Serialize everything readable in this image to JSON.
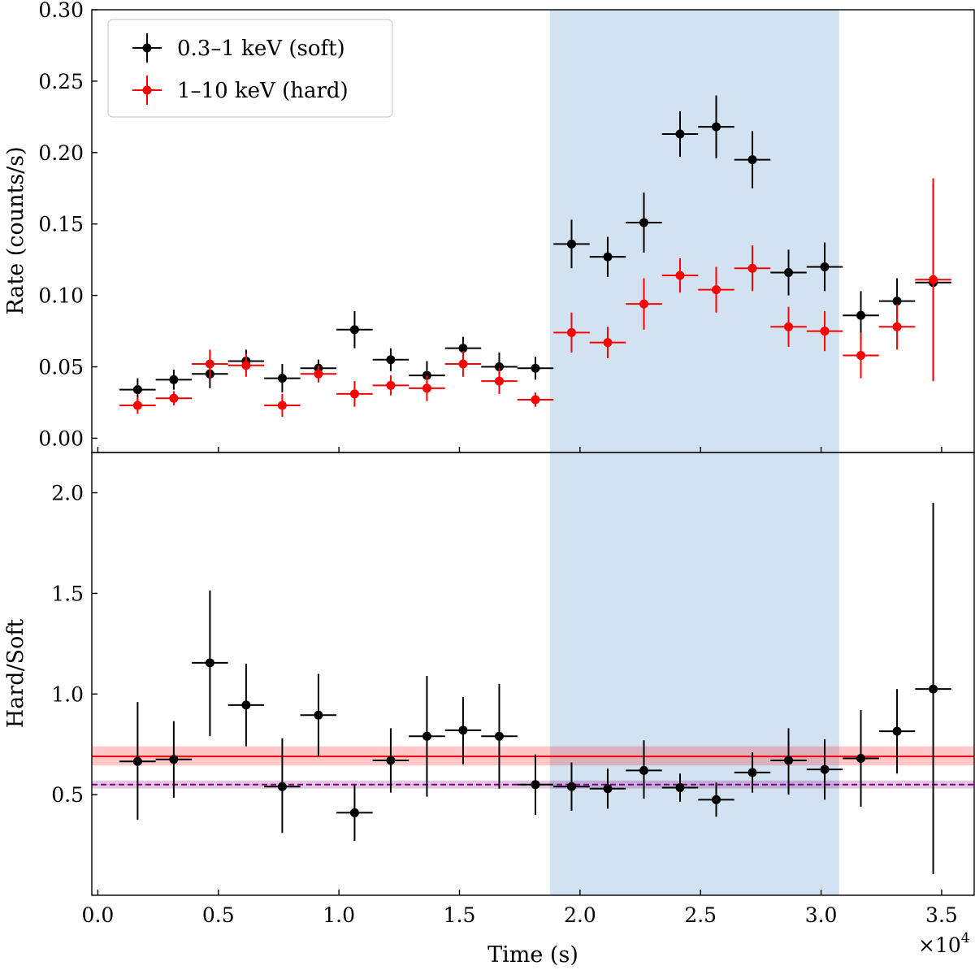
{
  "chart_data": [
    {
      "panel": "top",
      "type": "scatter",
      "ylabel": "Rate (counts/s)",
      "ylim": [
        -0.01,
        0.3
      ],
      "xlim": [
        -250,
        36350
      ],
      "y_ticks": [
        0.0,
        0.05,
        0.1,
        0.15,
        0.2,
        0.25,
        0.3
      ],
      "y_tick_labels": [
        "0.00",
        "0.05",
        "0.10",
        "0.15",
        "0.20",
        "0.25",
        "0.30"
      ],
      "legend_position": "top-left",
      "shaded_region": {
        "x": [
          18750,
          30750
        ],
        "color": "#a8c8e4"
      },
      "series": [
        {
          "name": "0.3–1 keV (soft)",
          "color": "#000000",
          "x": [
            1650,
            3150,
            4650,
            6150,
            7650,
            9150,
            10650,
            12150,
            13650,
            15150,
            16650,
            18150,
            19650,
            21150,
            22650,
            24150,
            25650,
            27150,
            28650,
            30150,
            31650,
            33150,
            34650
          ],
          "xerr": [
            750,
            750,
            750,
            750,
            750,
            750,
            750,
            750,
            750,
            750,
            750,
            750,
            750,
            750,
            750,
            750,
            750,
            750,
            750,
            750,
            750,
            750,
            750
          ],
          "y": [
            0.034,
            0.041,
            0.045,
            0.054,
            0.042,
            0.049,
            0.076,
            0.055,
            0.044,
            0.063,
            0.05,
            0.049,
            0.136,
            0.127,
            0.151,
            0.213,
            0.218,
            0.195,
            0.116,
            0.12,
            0.086,
            0.096,
            0.109
          ],
          "yerr": [
            0.008,
            0.007,
            0.01,
            0.008,
            0.01,
            0.006,
            0.013,
            0.008,
            0.01,
            0.008,
            0.01,
            0.008,
            0.017,
            0.014,
            0.021,
            0.016,
            0.022,
            0.02,
            0.016,
            0.017,
            0.017,
            0.016,
            0.069
          ]
        },
        {
          "name": "1–10 keV (hard)",
          "color": "#ff0000",
          "x": [
            1650,
            3150,
            4650,
            6150,
            7650,
            9150,
            10650,
            12150,
            13650,
            15150,
            16650,
            18150,
            19650,
            21150,
            22650,
            24150,
            25650,
            27150,
            28650,
            30150,
            31650,
            33150,
            34650
          ],
          "xerr": [
            750,
            750,
            750,
            750,
            750,
            750,
            750,
            750,
            750,
            750,
            750,
            750,
            750,
            750,
            750,
            750,
            750,
            750,
            750,
            750,
            750,
            750,
            750
          ],
          "y": [
            0.023,
            0.028,
            0.052,
            0.051,
            0.023,
            0.045,
            0.031,
            0.037,
            0.035,
            0.052,
            0.04,
            0.027,
            0.074,
            0.067,
            0.094,
            0.114,
            0.104,
            0.119,
            0.078,
            0.075,
            0.058,
            0.078,
            0.111
          ],
          "yerr": [
            0.006,
            0.005,
            0.01,
            0.008,
            0.008,
            0.006,
            0.009,
            0.007,
            0.009,
            0.009,
            0.009,
            0.005,
            0.014,
            0.011,
            0.018,
            0.012,
            0.016,
            0.016,
            0.014,
            0.014,
            0.016,
            0.016,
            0.071
          ]
        }
      ]
    },
    {
      "panel": "bottom",
      "type": "scatter",
      "xlabel": "Time (s)",
      "ylabel": "Hard/Soft",
      "ylim": [
        0.0,
        2.2
      ],
      "xlim": [
        -250,
        36350
      ],
      "x_ticks": [
        0,
        5000,
        10000,
        15000,
        20000,
        25000,
        30000,
        35000
      ],
      "x_tick_labels": [
        "0.0",
        "0.5",
        "1.0",
        "1.5",
        "2.0",
        "2.5",
        "3.0",
        "3.5"
      ],
      "x_offset_label": "×10",
      "x_offset_exponent": "4",
      "y_ticks": [
        0.5,
        1.0,
        1.5,
        2.0
      ],
      "y_tick_labels": [
        "0.5",
        "1.0",
        "1.5",
        "2.0"
      ],
      "shaded_region": {
        "x": [
          18750,
          30750
        ],
        "color": "#a8c8e4"
      },
      "reference_lines": [
        {
          "y": 0.69,
          "band": [
            0.645,
            0.74
          ],
          "color": "#ff0000",
          "style": "solid"
        },
        {
          "y": 0.55,
          "band": [
            0.53,
            0.57
          ],
          "color": "#800080",
          "style": "dashed"
        }
      ],
      "series": [
        {
          "color": "#000000",
          "x": [
            1650,
            3150,
            4650,
            6150,
            7650,
            9150,
            10650,
            12150,
            13650,
            15150,
            16650,
            18150,
            19650,
            21150,
            22650,
            24150,
            25650,
            27150,
            28650,
            30150,
            31650,
            33150,
            34650
          ],
          "xerr": [
            750,
            750,
            750,
            750,
            750,
            750,
            750,
            750,
            750,
            750,
            750,
            750,
            750,
            750,
            750,
            750,
            750,
            750,
            750,
            750,
            750,
            750,
            750
          ],
          "y": [
            0.665,
            0.675,
            1.155,
            0.945,
            0.54,
            0.895,
            0.41,
            0.67,
            0.79,
            0.82,
            0.79,
            0.55,
            0.54,
            0.53,
            0.62,
            0.535,
            0.475,
            0.61,
            0.67,
            0.625,
            0.68,
            0.815,
            1.025
          ],
          "ylo": [
            0.29,
            0.19,
            0.365,
            0.205,
            0.23,
            0.205,
            0.14,
            0.16,
            0.3,
            0.17,
            0.26,
            0.15,
            0.12,
            0.1,
            0.14,
            0.07,
            0.085,
            0.1,
            0.17,
            0.15,
            0.24,
            0.21,
            0.92
          ],
          "yhi": [
            0.295,
            0.19,
            0.36,
            0.205,
            0.24,
            0.205,
            0.14,
            0.16,
            0.3,
            0.165,
            0.26,
            0.15,
            0.12,
            0.1,
            0.15,
            0.07,
            0.085,
            0.1,
            0.16,
            0.15,
            0.24,
            0.21,
            0.925
          ]
        }
      ]
    }
  ],
  "legend": [
    {
      "label": "0.3–1 keV (soft)",
      "color": "#000000"
    },
    {
      "label": "1–10 keV (hard)",
      "color": "#ff0000"
    }
  ]
}
